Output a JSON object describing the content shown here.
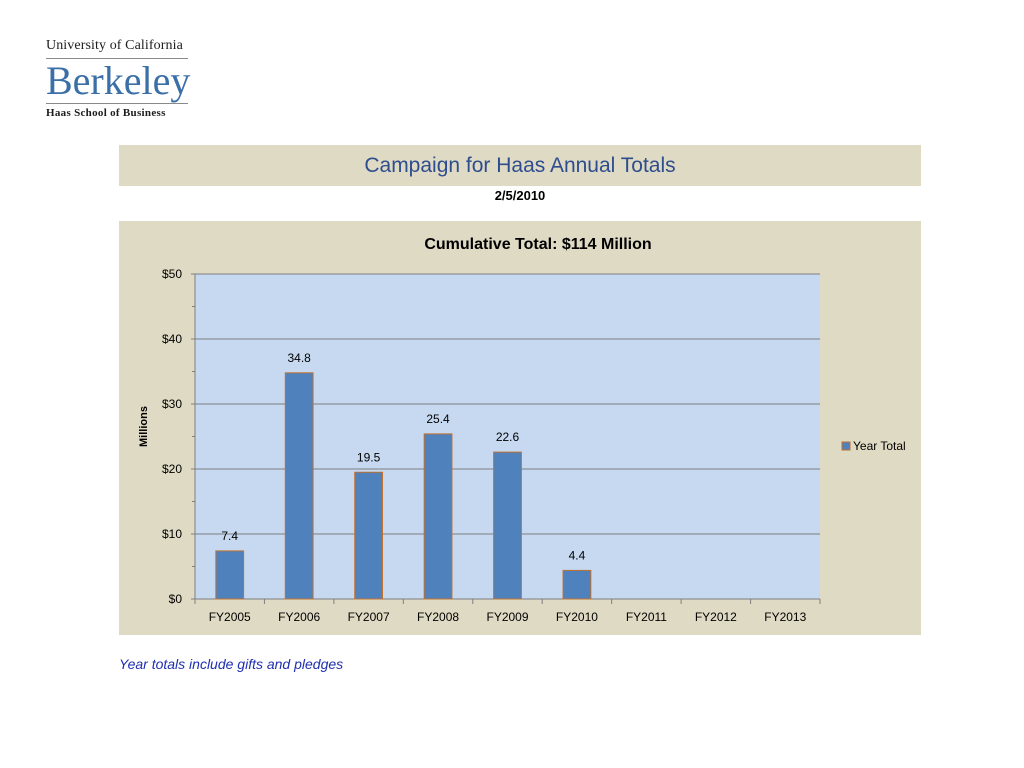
{
  "logo": {
    "line1": "University of California",
    "line2": "Berkeley",
    "line3": "Haas School of Business"
  },
  "header": {
    "title": "Campaign for Haas Annual Totals",
    "date": "2/5/2010"
  },
  "note": "Year totals include gifts and pledges",
  "colors": {
    "bar": "#4f81bd",
    "bar_stroke": "#c0712e",
    "plot_bg": "#c6d9f1",
    "panel_bg": "#dfdac4"
  },
  "chart_data": {
    "type": "bar",
    "title": "Cumulative  Total: $114 Million",
    "ylabel": "Millions",
    "xlabel": "",
    "categories": [
      "FY2005",
      "FY2006",
      "FY2007",
      "FY2008",
      "FY2009",
      "FY2010",
      "FY2011",
      "FY2012",
      "FY2013"
    ],
    "series": [
      {
        "name": "Year Total",
        "values": [
          7.4,
          34.8,
          19.5,
          25.4,
          22.6,
          4.4,
          null,
          null,
          null
        ],
        "labels": [
          "7.4",
          "34.8",
          "19.5",
          "25.4",
          "22.6",
          "4.4",
          "",
          "",
          ""
        ]
      }
    ],
    "ylim": [
      0,
      50
    ],
    "yticks": [
      0,
      10,
      20,
      30,
      40,
      50
    ],
    "ytick_labels": [
      "$0",
      "$10",
      "$20",
      "$30",
      "$40",
      "$50"
    ],
    "grid": true,
    "legend": "right"
  }
}
